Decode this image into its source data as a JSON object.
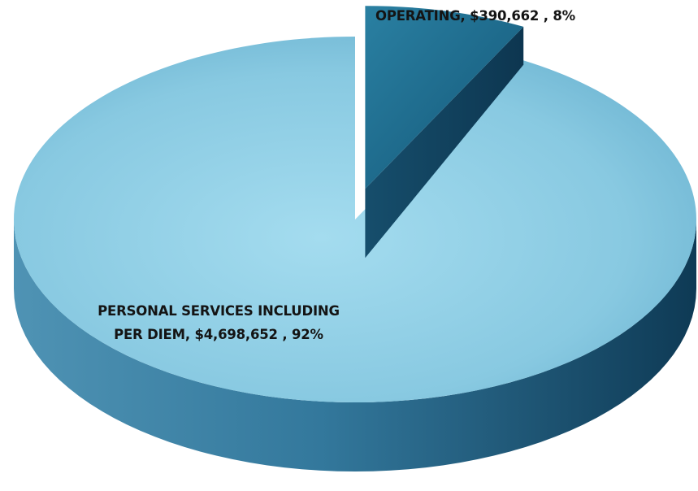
{
  "chart_data": {
    "type": "pie",
    "style": "3d-exploded",
    "slices": [
      {
        "label_line1": "OPERATING, $390,662 , 8%",
        "label_line2": "",
        "category": "OPERATING",
        "value": 390662,
        "percent": 8,
        "color": "#1f6f8f"
      },
      {
        "label_line1": "PERSONAL SERVICES INCLUDING",
        "label_line2": "PER DIEM, $4,698,652 , 92%",
        "category": "PERSONAL SERVICES INCLUDING PER DIEM",
        "value": 4698652,
        "percent": 92,
        "color": "#7fc3dd"
      }
    ]
  }
}
